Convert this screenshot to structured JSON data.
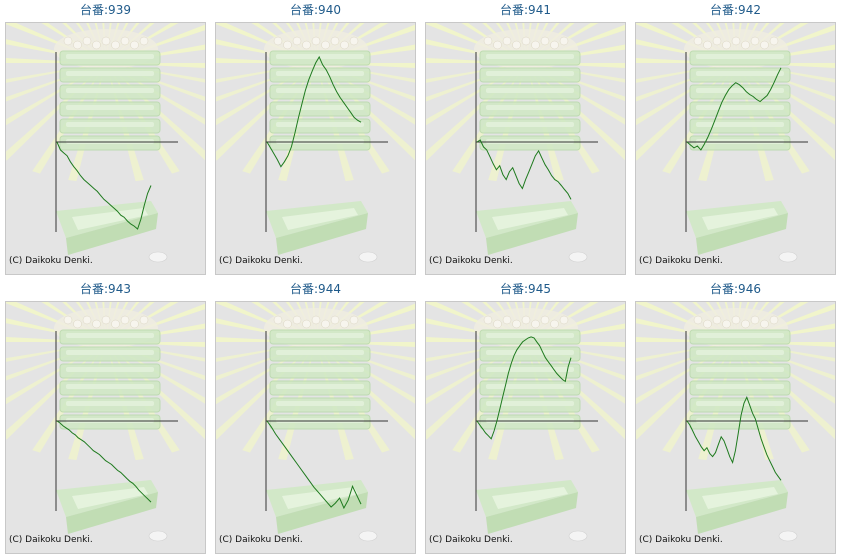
{
  "copyright": "(C) Daikoku Denki.",
  "colors": {
    "line": "#1e7a1e",
    "title": "#1f5a8a",
    "axis": "#333333",
    "background": "#e4e4e4"
  },
  "machines": [
    {
      "title": "台番:939",
      "chart_data": {
        "type": "line",
        "y": [
          0,
          -8,
          -11,
          -14,
          -20,
          -25,
          -29,
          -34,
          -38,
          -41,
          -44,
          -47,
          -50,
          -54,
          -58,
          -61,
          -64,
          -67,
          -70,
          -74,
          -76,
          -80,
          -83,
          -85,
          -88,
          -78,
          -64,
          -52,
          -44
        ]
      }
    },
    {
      "title": "台番:940",
      "chart_data": {
        "type": "line",
        "y": [
          0,
          -6,
          -12,
          -18,
          -25,
          -20,
          -14,
          -5,
          9,
          24,
          38,
          52,
          63,
          72,
          80,
          86,
          78,
          73,
          66,
          58,
          51,
          45,
          40,
          35,
          30,
          25,
          22,
          20
        ]
      }
    },
    {
      "title": "台番:941",
      "chart_data": {
        "type": "line",
        "y": [
          0,
          2,
          -5,
          -8,
          -15,
          -22,
          -28,
          -24,
          -33,
          -38,
          -30,
          -26,
          -34,
          -42,
          -47,
          -38,
          -30,
          -22,
          -14,
          -9,
          -16,
          -23,
          -28,
          -34,
          -38,
          -40,
          -44,
          -48,
          -52,
          -58
        ]
      }
    },
    {
      "title": "台番:942",
      "chart_data": {
        "type": "line",
        "y": [
          0,
          -3,
          -6,
          -4,
          -8,
          -2,
          5,
          13,
          22,
          31,
          40,
          47,
          53,
          57,
          60,
          58,
          55,
          51,
          48,
          46,
          43,
          41,
          44,
          47,
          53,
          60,
          68,
          75
        ]
      }
    },
    {
      "title": "台番:943",
      "chart_data": {
        "type": "line",
        "y": [
          0,
          -2,
          -5,
          -7,
          -9,
          -12,
          -14,
          -17,
          -19,
          -21,
          -24,
          -27,
          -30,
          -32,
          -34,
          -37,
          -40,
          -42,
          -44,
          -47,
          -50,
          -52,
          -55,
          -58,
          -61,
          -63,
          -66,
          -70,
          -73,
          -76,
          -79,
          -82
        ]
      }
    },
    {
      "title": "台番:944",
      "chart_data": {
        "type": "line",
        "y": [
          0,
          -6,
          -13,
          -19,
          -25,
          -31,
          -37,
          -43,
          -49,
          -55,
          -61,
          -67,
          -72,
          -77,
          -82,
          -87,
          -83,
          -78,
          -88,
          -80,
          -66,
          -75,
          -84
        ]
      }
    },
    {
      "title": "台番:945",
      "chart_data": {
        "type": "line",
        "y": [
          0,
          -4,
          -8,
          -12,
          -15,
          -18,
          -10,
          0,
          12,
          24,
          36,
          48,
          58,
          66,
          72,
          76,
          80,
          82,
          84,
          85,
          84,
          80,
          76,
          70,
          64,
          60,
          56,
          52,
          48,
          45,
          42,
          40,
          55,
          64
        ]
      }
    },
    {
      "title": "台番:946",
      "chart_data": {
        "type": "line",
        "y": [
          0,
          -4,
          -10,
          -16,
          -21,
          -26,
          -30,
          -27,
          -33,
          -36,
          -32,
          -24,
          -16,
          -20,
          -28,
          -36,
          -42,
          -30,
          -12,
          6,
          18,
          24,
          16,
          8,
          2,
          -8,
          -18,
          -26,
          -34,
          -40,
          -46,
          -52,
          -56,
          -60
        ]
      }
    }
  ]
}
